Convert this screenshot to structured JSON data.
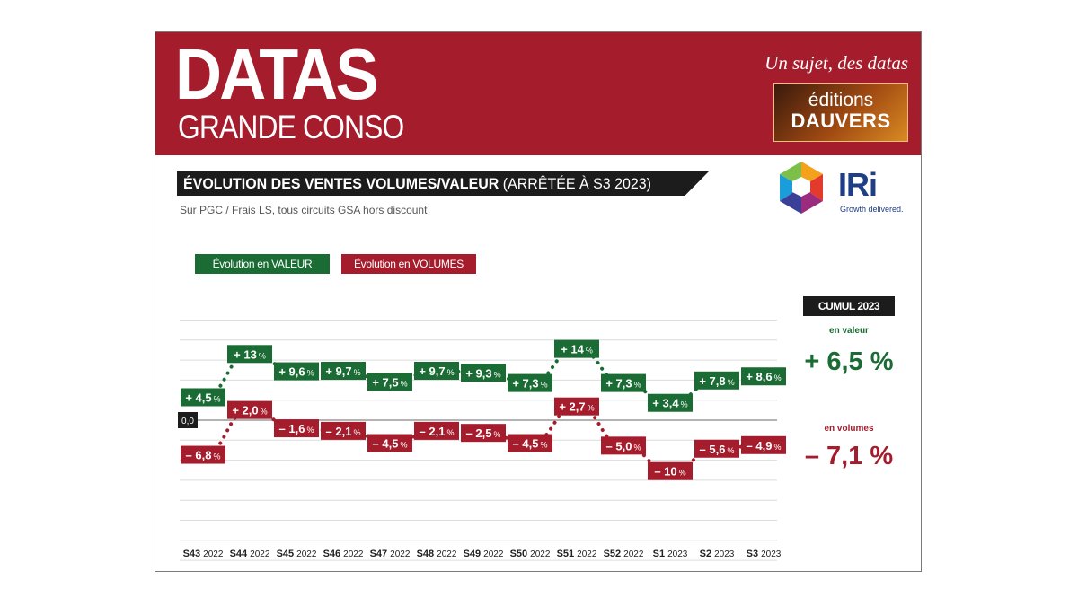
{
  "header": {
    "brand_main": "DATAS",
    "brand_sub": "GRANDE CONSO",
    "tagline": "Un sujet, des datas",
    "publisher_line1": "éditions",
    "publisher_line2": "DAUVERS",
    "banner_color": "#a51d2d"
  },
  "title": {
    "bold": "ÉVOLUTION DES VENTES VOLUMES/VALEUR",
    "light": "(ARRÊTÉE À S3 2023)"
  },
  "subtitle": "Sur PGC / Frais LS, tous circuits GSA hors discount",
  "source_logo": {
    "name": "IRi",
    "tagline": "Growth delivered.",
    "icon": "iri-cube-logo"
  },
  "legend": {
    "valeur": "Évolution en VALEUR",
    "volumes": "Évolution en VOLUMES"
  },
  "cumul": {
    "title": "CUMUL 2023",
    "valeur_label": "en valeur",
    "valeur_value": "+ 6,5 %",
    "volumes_label": "en volumes",
    "volumes_value": "– 7,1 %"
  },
  "chart_data": {
    "type": "line",
    "categories": [
      {
        "week": "S43",
        "year": "2022"
      },
      {
        "week": "S44",
        "year": "2022"
      },
      {
        "week": "S45",
        "year": "2022"
      },
      {
        "week": "S46",
        "year": "2022"
      },
      {
        "week": "S47",
        "year": "2022"
      },
      {
        "week": "S48",
        "year": "2022"
      },
      {
        "week": "S49",
        "year": "2022"
      },
      {
        "week": "S50",
        "year": "2022"
      },
      {
        "week": "S51",
        "year": "2022"
      },
      {
        "week": "S52",
        "year": "2022"
      },
      {
        "week": "S1",
        "year": "2023"
      },
      {
        "week": "S2",
        "year": "2023"
      },
      {
        "week": "S3",
        "year": "2023"
      }
    ],
    "zero_label": "0,0",
    "unit": "%",
    "series": [
      {
        "name": "Évolution en VALEUR",
        "color": "#1b6b34",
        "values": [
          4.5,
          13,
          9.6,
          9.7,
          7.5,
          9.7,
          9.3,
          7.3,
          14,
          7.3,
          3.4,
          7.8,
          8.6
        ],
        "labels": [
          "+ 4,5",
          "+ 13",
          "+ 9,6",
          "+ 9,7",
          "+ 7,5",
          "+ 9,7",
          "+ 9,3",
          "+ 7,3",
          "+ 14",
          "+ 7,3",
          "+ 3,4",
          "+ 7,8",
          "+ 8,6"
        ]
      },
      {
        "name": "Évolution en VOLUMES",
        "color": "#a51d2d",
        "values": [
          -6.8,
          2.0,
          -1.6,
          -2.1,
          -4.5,
          -2.1,
          -2.5,
          -4.5,
          2.7,
          -5.0,
          -10,
          -5.6,
          -4.9
        ],
        "labels": [
          "– 6,8",
          "+ 2,0",
          "– 1,6",
          "– 2,1",
          "– 4,5",
          "– 2,1",
          "– 2,5",
          "– 4,5",
          "+ 2,7",
          "– 5,0",
          "– 10",
          "– 5,6",
          "– 4,9"
        ]
      }
    ],
    "grid": true,
    "dotted_lines": true
  }
}
